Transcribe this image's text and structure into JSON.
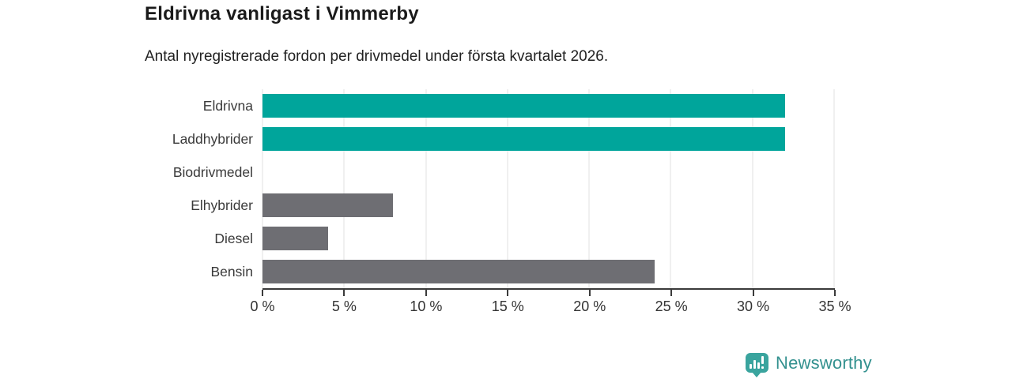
{
  "chart_data": {
    "type": "bar",
    "orientation": "horizontal",
    "title": "Eldrivna vanligast i Vimmerby",
    "subtitle": "Antal nyregistrerade fordon per drivmedel under första kvartalet 2026.",
    "categories": [
      "Eldrivna",
      "Laddhybrider",
      "Biodrivmedel",
      "Elhybrider",
      "Diesel",
      "Bensin"
    ],
    "values": [
      32,
      32,
      0,
      8,
      4,
      24
    ],
    "unit": "%",
    "xlim": [
      0,
      35
    ],
    "x_ticks": [
      0,
      5,
      10,
      15,
      20,
      25,
      30,
      35
    ],
    "x_tick_labels": [
      "0 %",
      "5 %",
      "10 %",
      "15 %",
      "20 %",
      "25 %",
      "30 %",
      "35 %"
    ],
    "bar_colors": [
      "#00a59b",
      "#00a59b",
      "#6e6e73",
      "#6e6e73",
      "#6e6e73",
      "#6e6e73"
    ],
    "grid": "vertical-only",
    "legend": "none"
  },
  "colors": {
    "teal": "#00a59b",
    "gray": "#6e6e73",
    "gridline": "#e0e0e0",
    "axis": "#3b3b3b",
    "title_text": "#1a1a1a",
    "body_text": "#222222",
    "logo": "#33918f",
    "logo_icon": "#3aa49e"
  },
  "branding": {
    "name": "Newsworthy",
    "icon": "newsworthy-bar-chart-bubble-icon"
  }
}
